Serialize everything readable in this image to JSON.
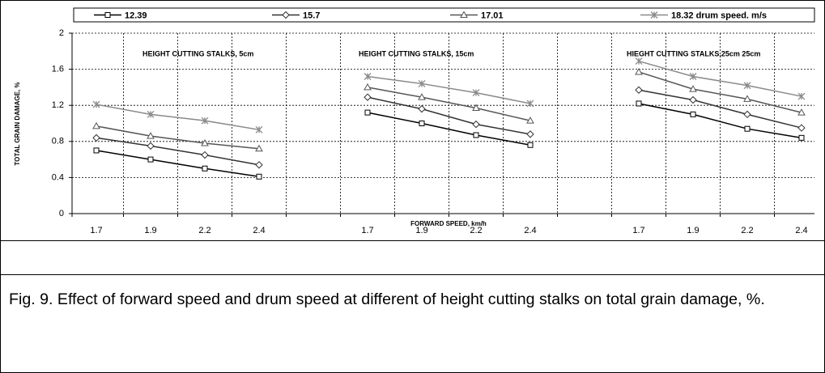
{
  "chart_data": {
    "type": "line",
    "annotations": [
      "HEIGHT CUTTING STALKS, 5cm",
      "HEIGHT CUTTING STALKS, 15cm",
      "HIEGHT CUTTING STALKS,25cm 25cm"
    ],
    "x_label": "FORWARD SPEED, km/h",
    "y_label": "TOTAL GRAIN DAMAGE, %",
    "categories": [
      "1.7",
      "1.9",
      "2.2",
      "2.4",
      null,
      "1.7",
      "1.9",
      "2.2",
      "2.4",
      null,
      "1.7",
      "1.9",
      "2.2",
      "2.4"
    ],
    "series": [
      {
        "name": "12.39",
        "color": "#000000",
        "marker": "square",
        "values": [
          0.7,
          0.6,
          0.5,
          0.41,
          null,
          1.12,
          1.0,
          0.87,
          0.76,
          null,
          1.22,
          1.1,
          0.94,
          0.84
        ]
      },
      {
        "name": "15.7",
        "color": "#333333",
        "marker": "diamond",
        "values": [
          0.84,
          0.75,
          0.65,
          0.54,
          null,
          1.29,
          1.16,
          0.99,
          0.88,
          null,
          1.37,
          1.26,
          1.1,
          0.95
        ]
      },
      {
        "name": "17.01",
        "color": "#555555",
        "marker": "triangle",
        "values": [
          0.97,
          0.86,
          0.78,
          0.72,
          null,
          1.4,
          1.29,
          1.17,
          1.03,
          null,
          1.57,
          1.38,
          1.27,
          1.12
        ]
      },
      {
        "name": "18.32 drum speed. m/s",
        "color": "#8a8a8a",
        "marker": "star",
        "values": [
          1.21,
          1.1,
          1.03,
          0.93,
          null,
          1.52,
          1.44,
          1.34,
          1.22,
          null,
          1.69,
          1.52,
          1.42,
          1.3
        ]
      }
    ],
    "ylim": [
      0,
      2
    ],
    "yticks": [
      0,
      0.4,
      0.8,
      1.2,
      1.6,
      2
    ],
    "grid": true,
    "legend": "top"
  },
  "caption": "Fig. 9. Effect of forward speed and drum speed at different of height cutting stalks on total grain damage, %."
}
